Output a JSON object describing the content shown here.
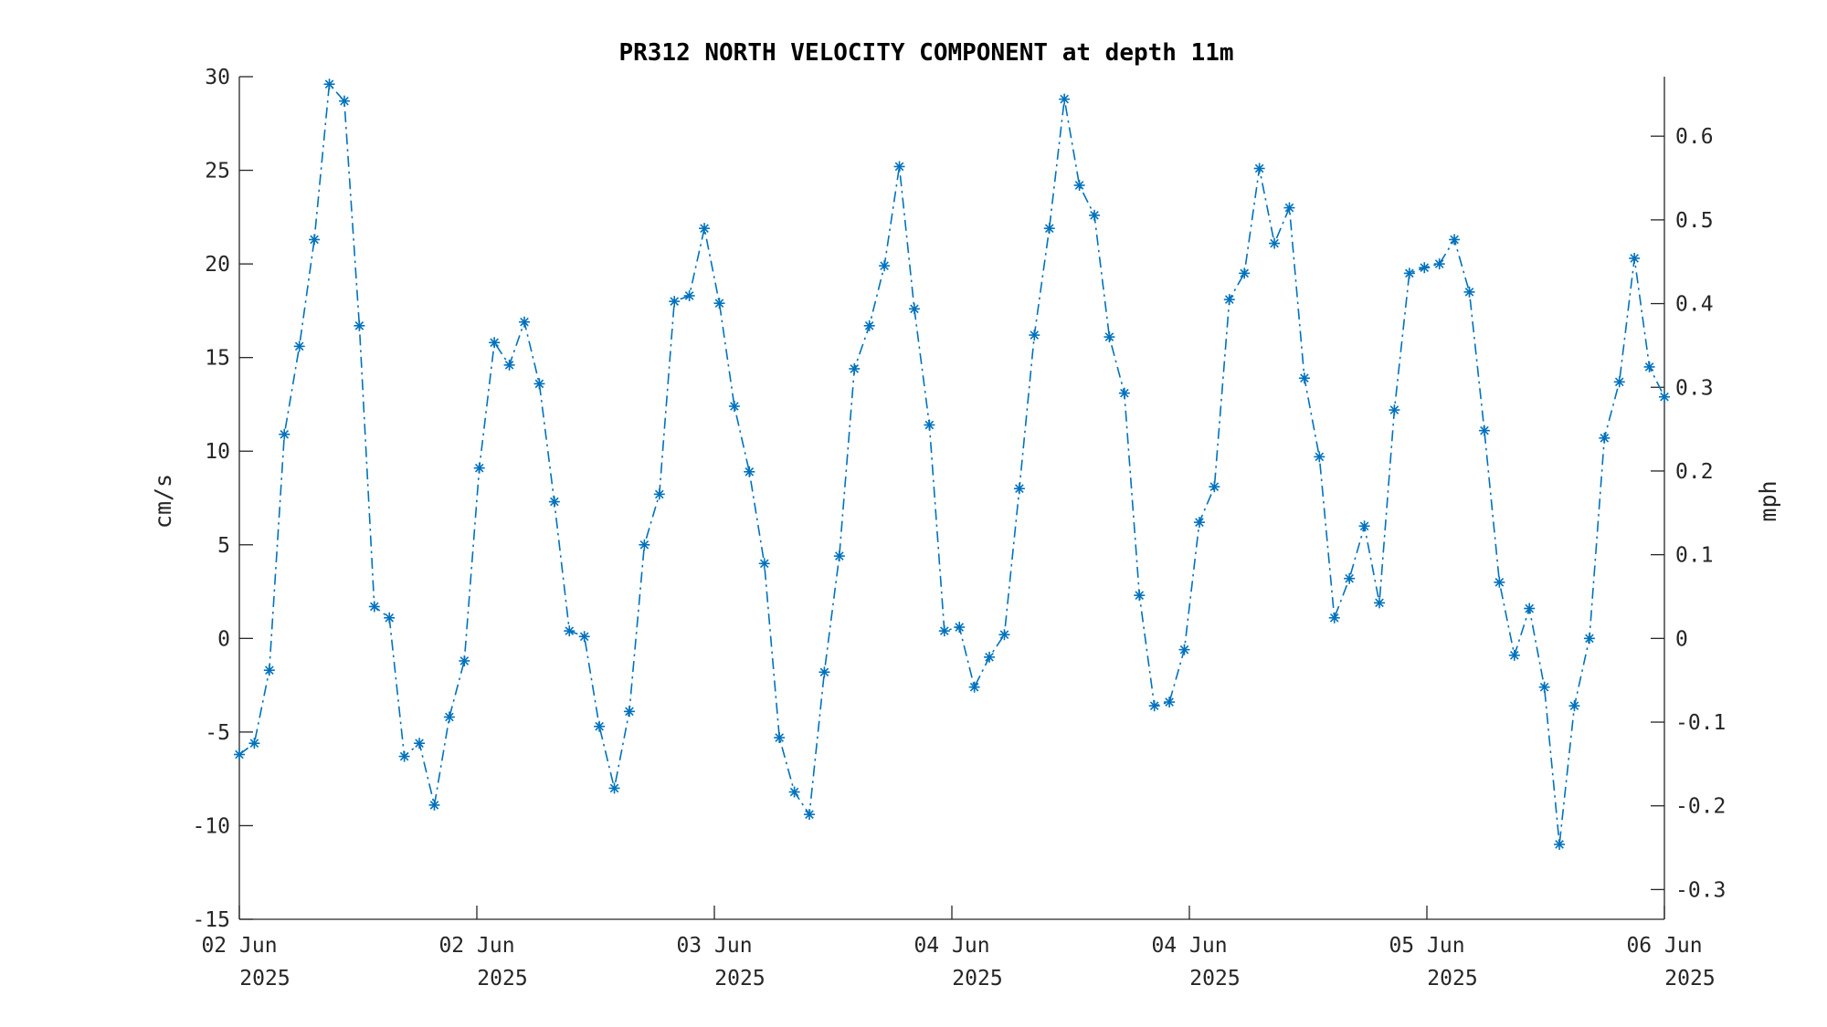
{
  "chart_data": {
    "type": "line",
    "title": "PR312 NORTH VELOCITY COMPONENT at depth 11m",
    "ylabel": "cm/s",
    "ylabel_right": "mph",
    "ylim": [
      -15,
      30
    ],
    "y_ticks": [
      -15,
      -10,
      -5,
      0,
      5,
      10,
      15,
      20,
      25,
      30
    ],
    "y_tick_labels": [
      "-15",
      "-10",
      "-5",
      "0",
      "5",
      "10",
      "15",
      "20",
      "25",
      "30"
    ],
    "y2_ticks": [
      -0.3,
      -0.2,
      -0.1,
      0,
      0.1,
      0.2,
      0.3,
      0.4,
      0.5,
      0.6
    ],
    "y2_tick_labels": [
      "-0.3",
      "-0.2",
      "-0.1",
      "0",
      "0.1",
      "0.2",
      "0.3",
      "0.4",
      "0.5",
      "0.6"
    ],
    "x_tick_labels": [
      {
        "day": "02 Jun",
        "year": "2025"
      },
      {
        "day": "02 Jun",
        "year": "2025"
      },
      {
        "day": "03 Jun",
        "year": "2025"
      },
      {
        "day": "04 Jun",
        "year": "2025"
      },
      {
        "day": "04 Jun",
        "year": "2025"
      },
      {
        "day": "05 Jun",
        "year": "2025"
      },
      {
        "day": "06 Jun",
        "year": "2025"
      }
    ],
    "grid": false,
    "line_style": "dash-dot",
    "marker": "asterisk",
    "color": "#0072BD",
    "series": [
      {
        "values": [
          -6.2,
          -5.6,
          -1.7,
          10.9,
          15.6,
          21.3,
          29.6,
          28.7,
          16.7,
          1.7,
          1.1,
          -6.3,
          -5.6,
          -8.9,
          -4.2,
          -1.2,
          9.1,
          15.8,
          14.6,
          16.9,
          13.6,
          7.3,
          0.4,
          0.1,
          -4.7,
          -8.0,
          -3.9,
          5.0,
          7.7,
          18.0,
          18.3,
          21.9,
          17.9,
          12.4,
          8.9,
          4.0,
          -5.3,
          -8.2,
          -9.4,
          -1.8,
          4.4,
          14.4,
          16.7,
          19.9,
          25.2,
          17.6,
          11.4,
          0.4,
          0.6,
          -2.6,
          -1.0,
          0.2,
          8.0,
          16.2,
          21.9,
          28.8,
          24.2,
          22.6,
          16.1,
          13.1,
          2.3,
          -3.6,
          -3.4,
          -0.6,
          6.2,
          8.1,
          18.1,
          19.5,
          25.1,
          21.1,
          23.0,
          13.9,
          9.7,
          1.1,
          3.2,
          6.0,
          1.9,
          12.2,
          19.5,
          19.8,
          20.0,
          21.3,
          18.5,
          11.1,
          3.0,
          -0.9,
          1.6,
          -2.6,
          -11.0,
          -3.6,
          0.0,
          10.7,
          13.7,
          20.3,
          14.5,
          12.9
        ]
      }
    ]
  }
}
